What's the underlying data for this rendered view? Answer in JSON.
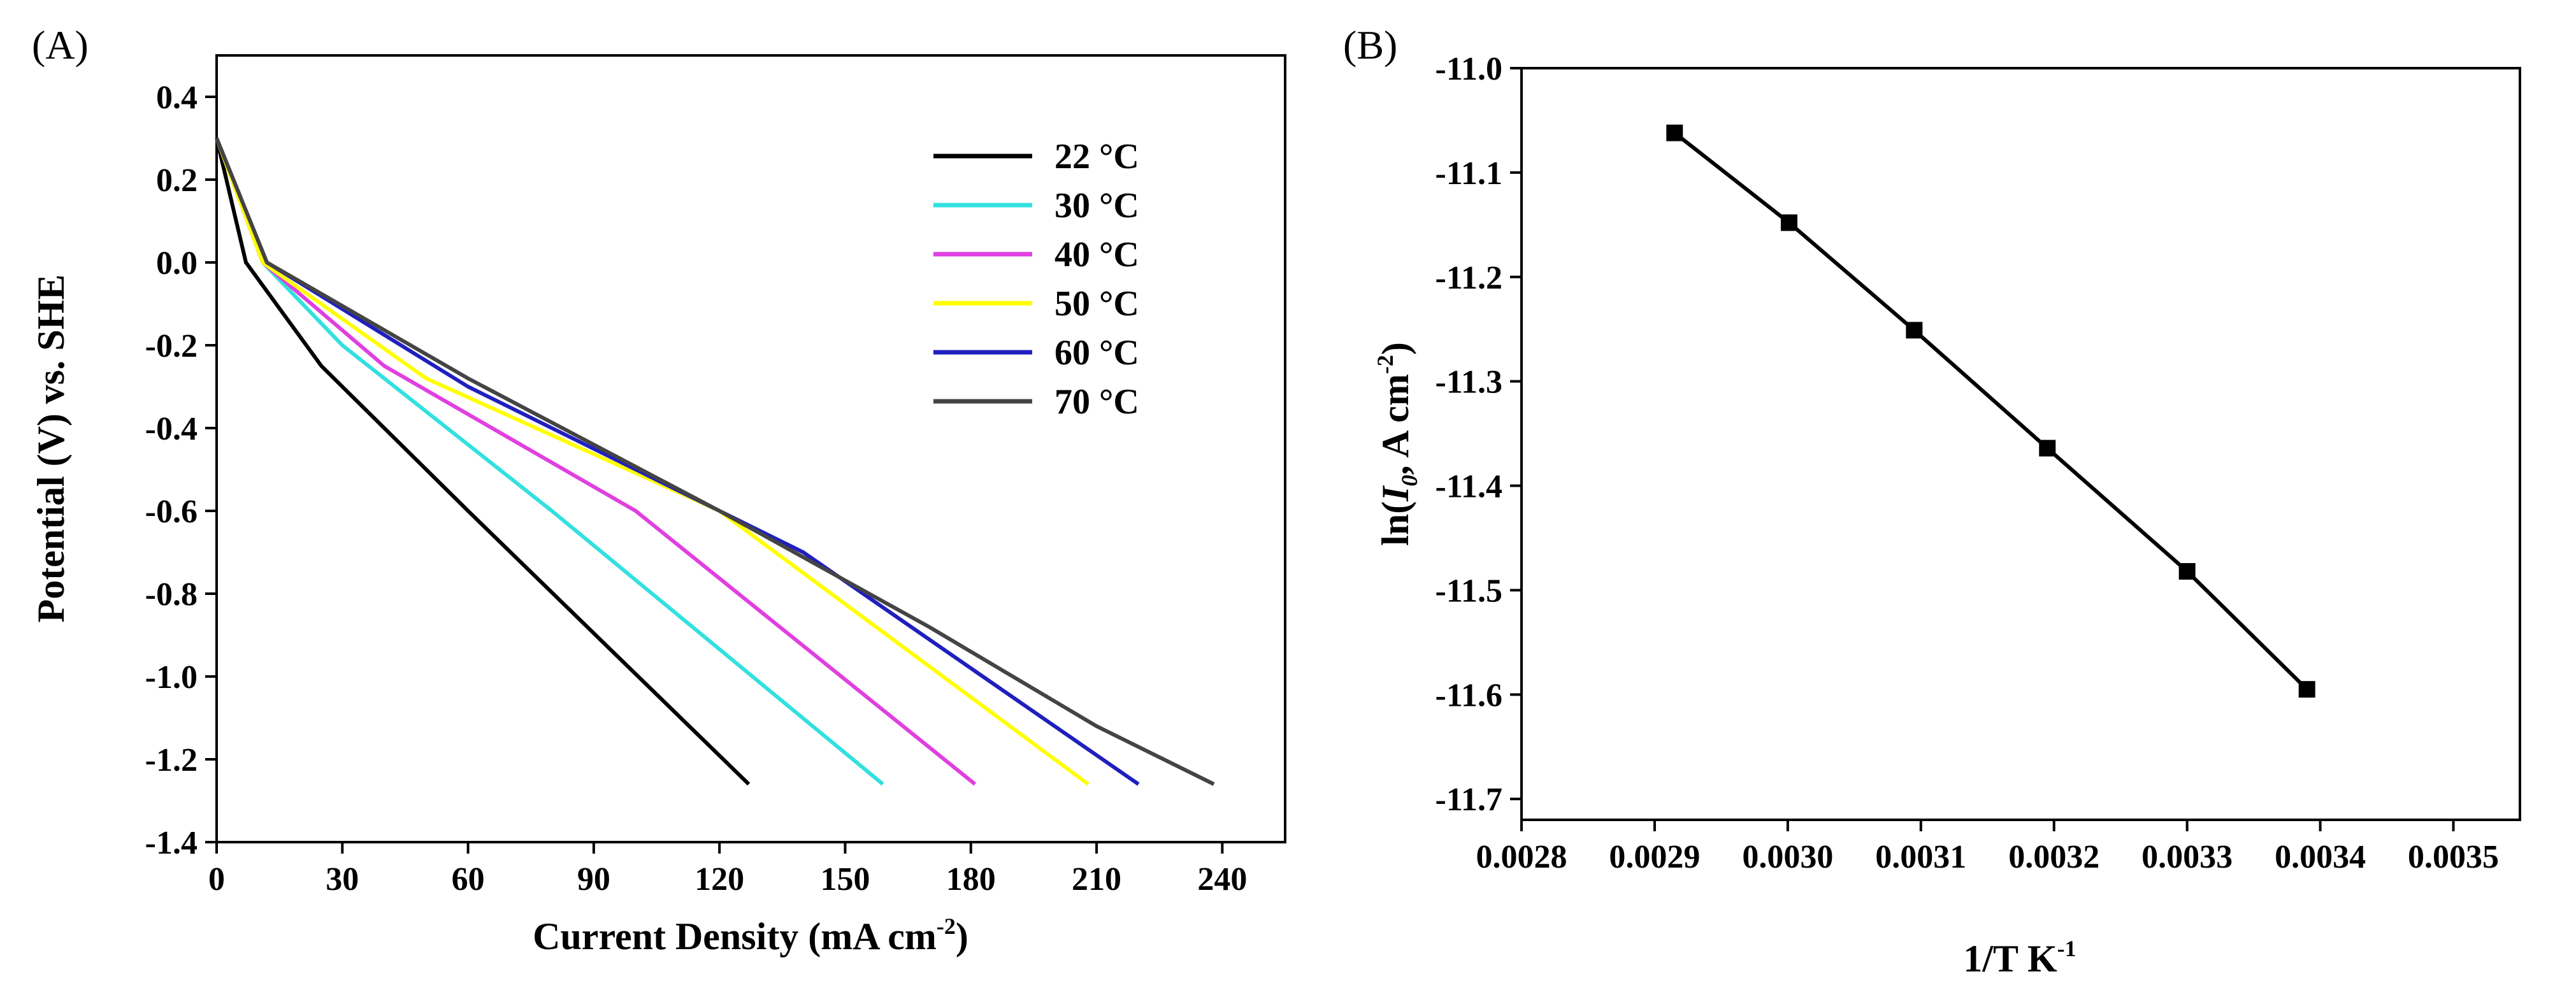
{
  "chart_data": [
    {
      "panel": "(A)",
      "type": "line",
      "xlabel": "Current Density (mA cm",
      "xlabel_sup": "-2",
      "xlabel_end": ")",
      "ylabel": "Potential (V) vs. SHE",
      "xlim": [
        0,
        255
      ],
      "ylim": [
        -1.4,
        0.5
      ],
      "xticks": [
        0,
        30,
        60,
        90,
        120,
        150,
        180,
        210,
        240
      ],
      "yticks": [
        -1.4,
        -1.2,
        -1.0,
        -0.8,
        -0.6,
        -0.4,
        -0.2,
        0.0,
        0.2,
        0.4
      ],
      "ytick_labels": [
        "-1.4",
        "-1.2",
        "-1.0",
        "-0.8",
        "-0.6",
        "-0.4",
        "-0.2",
        "0.0",
        "0.2",
        "0.4"
      ],
      "legend_position": "top-right",
      "series": [
        {
          "name": "22 °C",
          "color": "#000000",
          "x": [
            0,
            7,
            25,
            60,
            127
          ],
          "y": [
            0.3,
            0.0,
            -0.25,
            -0.6,
            -1.26
          ]
        },
        {
          "name": "30 °C",
          "color": "#33e0e0",
          "x": [
            0,
            11,
            30,
            80,
            159
          ],
          "y": [
            0.3,
            0.0,
            -0.2,
            -0.6,
            -1.26
          ]
        },
        {
          "name": "40 °C",
          "color": "#e040e0",
          "x": [
            0,
            11,
            40,
            100,
            181
          ],
          "y": [
            0.3,
            0.0,
            -0.25,
            -0.6,
            -1.26
          ]
        },
        {
          "name": "50 °C",
          "color": "#ffff00",
          "x": [
            0,
            11,
            50,
            120,
            208
          ],
          "y": [
            0.3,
            0.0,
            -0.28,
            -0.6,
            -1.26
          ]
        },
        {
          "name": "60 °C",
          "color": "#1f1fbf",
          "x": [
            0,
            12,
            60,
            140,
            220
          ],
          "y": [
            0.3,
            0.0,
            -0.3,
            -0.7,
            -1.26
          ]
        },
        {
          "name": "70 °C",
          "color": "#444444",
          "x": [
            0,
            12,
            60,
            120,
            170,
            210,
            238
          ],
          "y": [
            0.3,
            0.0,
            -0.28,
            -0.6,
            -0.88,
            -1.12,
            -1.26
          ]
        }
      ]
    },
    {
      "panel": "(B)",
      "type": "line",
      "xlabel": "1/T K",
      "xlabel_sup": "-1",
      "ylabel_pre": "ln(",
      "ylabel_italic": "I",
      "ylabel_sub": "0",
      "ylabel_post": ", A cm",
      "ylabel_sup": "-2",
      "ylabel_end": ")",
      "xlim": [
        0.0028,
        0.00355
      ],
      "ylim": [
        -11.72,
        -11.0
      ],
      "xticks": [
        0.0028,
        0.0029,
        0.003,
        0.0031,
        0.0032,
        0.0033,
        0.0034,
        0.0035
      ],
      "xtick_labels": [
        "0.0028",
        "0.0029",
        "0.0030",
        "0.0031",
        "0.0032",
        "0.0033",
        "0.0034",
        "0.0035"
      ],
      "yticks": [
        -11.7,
        -11.6,
        -11.5,
        -11.4,
        -11.3,
        -11.2,
        -11.1,
        -11.0
      ],
      "ytick_labels": [
        "-11.7",
        "-11.6",
        "-11.5",
        "-11.4",
        "-11.3",
        "-11.2",
        "-11.1",
        "-11.0"
      ],
      "series": [
        {
          "name": "ln I0",
          "color": "#000000",
          "marker": "square",
          "x": [
            0.002915,
            0.003001,
            0.003095,
            0.003195,
            0.0033,
            0.00339
          ],
          "y": [
            -11.062,
            -11.148,
            -11.251,
            -11.364,
            -11.482,
            -11.595
          ]
        }
      ]
    }
  ]
}
